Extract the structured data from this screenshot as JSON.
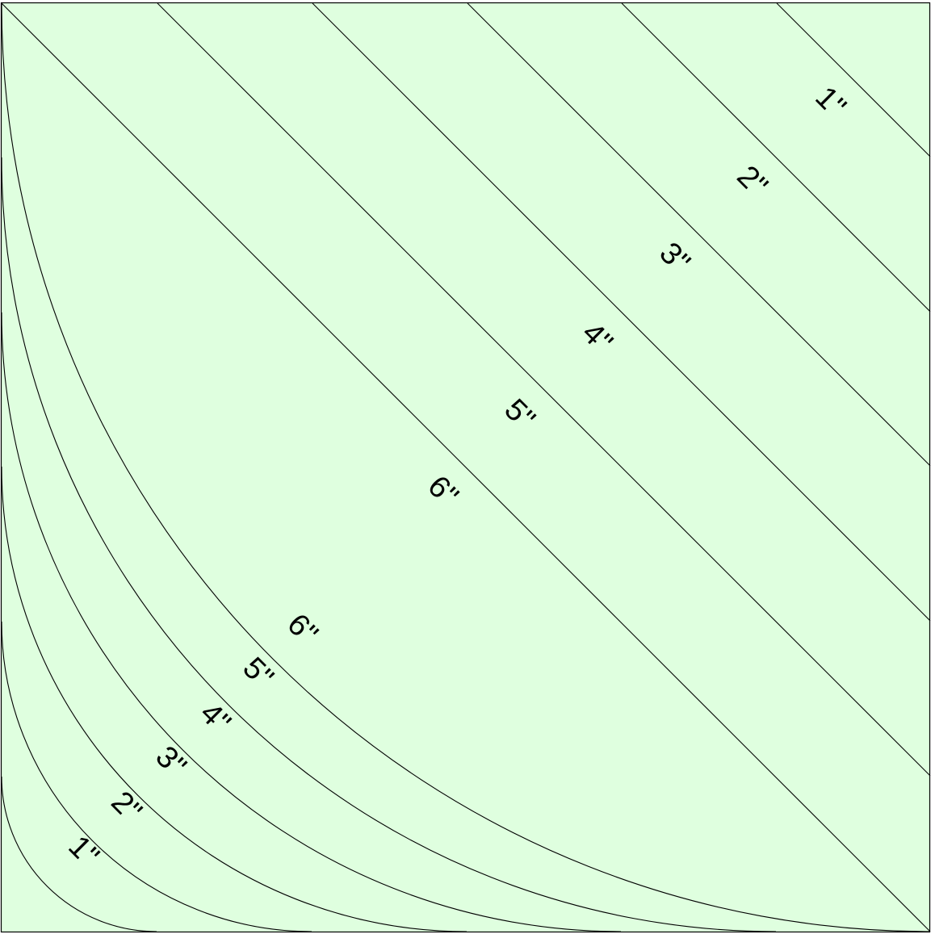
{
  "background_color": "#dfffdf",
  "line_color": "#000000",
  "diagonal_labels": [
    "1\"",
    "2\"",
    "3\"",
    "4\"",
    "5\"",
    "6\""
  ],
  "curve_labels": [
    "1\"",
    "2\"",
    "3\"",
    "4\"",
    "5\"",
    "6\""
  ]
}
